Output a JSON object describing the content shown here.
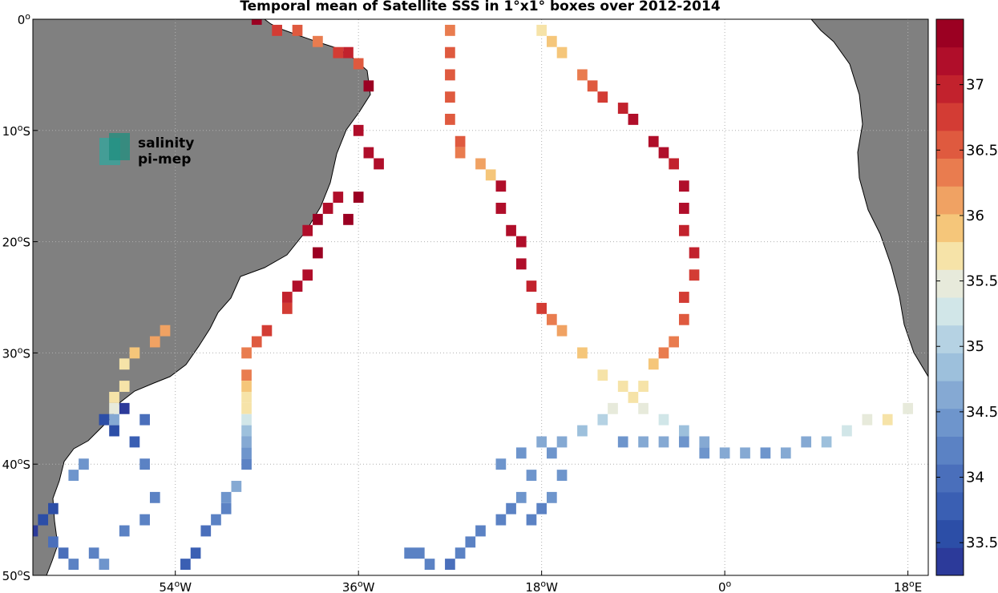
{
  "title": "Temporal mean of Satellite SSS in 1°x1° boxes over 2012-2014",
  "logo": {
    "line1": "salinity",
    "line2": "pi-mep"
  },
  "map": {
    "lon_range": [
      -68,
      20
    ],
    "lat_range": [
      -50,
      0
    ],
    "lon_ticks": [
      {
        "value": -54,
        "num": "54",
        "hemi": "W"
      },
      {
        "value": -36,
        "num": "36",
        "hemi": "W"
      },
      {
        "value": -18,
        "num": "18",
        "hemi": "W"
      },
      {
        "value": 0,
        "num": "0",
        "hemi": ""
      },
      {
        "value": 18,
        "num": "18",
        "hemi": "E"
      }
    ],
    "lat_ticks": [
      {
        "value": 0,
        "num": "0",
        "hemi": ""
      },
      {
        "value": -10,
        "num": "10",
        "hemi": "S"
      },
      {
        "value": -20,
        "num": "20",
        "hemi": "S"
      },
      {
        "value": -30,
        "num": "30",
        "hemi": "S"
      },
      {
        "value": -40,
        "num": "40",
        "hemi": "S"
      },
      {
        "value": -50,
        "num": "50",
        "hemi": "S"
      }
    ],
    "land_color": "#808080",
    "ocean_color": "#ffffff"
  },
  "colorbar": {
    "min": 33.25,
    "max": 37.5,
    "ticks": [
      "33.5",
      "34",
      "34.5",
      "35",
      "35.5",
      "36",
      "36.5",
      "37"
    ],
    "tick_values": [
      33.5,
      34,
      34.5,
      35,
      35.5,
      36,
      36.5,
      37
    ],
    "colors": [
      "#2c3a9a",
      "#2c4ea7",
      "#3a5fb3",
      "#4a6fbb",
      "#5b82c4",
      "#6e95cc",
      "#85a9d3",
      "#9dc0dc",
      "#b5d2e3",
      "#d1e6e8",
      "#e7eadb",
      "#f6e3a8",
      "#f5c67a",
      "#f0a263",
      "#e97c4f",
      "#df5a3f",
      "#d33c34",
      "#c2222d",
      "#b00e2a",
      "#9b0022"
    ]
  },
  "chart_data": {
    "type": "heatmap",
    "title": "Temporal mean of Satellite SSS in 1°x1° boxes over 2012-2014",
    "variable": "Satellite SSS",
    "lon_range": [
      -68,
      20
    ],
    "lat_range": [
      -50,
      0
    ],
    "color_range": [
      33.25,
      37.5
    ],
    "cells": [
      [
        -46,
        0,
        37.4
      ],
      [
        -44,
        -1,
        36.8
      ],
      [
        -42,
        -1,
        36.6
      ],
      [
        -40,
        -2,
        36.3
      ],
      [
        -38,
        -3,
        36.7
      ],
      [
        -37,
        -3,
        36.9
      ],
      [
        -36,
        -4,
        36.6
      ],
      [
        -35,
        -6,
        37.3
      ],
      [
        -36,
        -10,
        37.2
      ],
      [
        -35,
        -12,
        37.2
      ],
      [
        -34,
        -13,
        37.2
      ],
      [
        -36,
        -16,
        37.3
      ],
      [
        -37,
        -18,
        37.3
      ],
      [
        -38,
        -16,
        37.2
      ],
      [
        -40,
        -18,
        37.3
      ],
      [
        -39,
        -17,
        37.2
      ],
      [
        -41,
        -19,
        37.2
      ],
      [
        -40,
        -21,
        37.3
      ],
      [
        -41,
        -23,
        37.2
      ],
      [
        -42,
        -24,
        37.1
      ],
      [
        -43,
        -25,
        36.9
      ],
      [
        -43,
        -26,
        36.7
      ],
      [
        -45,
        -28,
        36.8
      ],
      [
        -46,
        -29,
        36.5
      ],
      [
        -47,
        -30,
        36.3
      ],
      [
        -47,
        -32,
        36.3
      ],
      [
        -47,
        -33,
        36.0
      ],
      [
        -47,
        -34,
        35.8
      ],
      [
        -47,
        -35,
        35.6
      ],
      [
        -47,
        -36,
        35.2
      ],
      [
        -47,
        -37,
        34.9
      ],
      [
        -47,
        -38,
        34.7
      ],
      [
        -47,
        -39,
        34.5
      ],
      [
        -47,
        -40,
        34.3
      ],
      [
        -48,
        -42,
        34.6
      ],
      [
        -49,
        -43,
        34.4
      ],
      [
        -49,
        -44,
        34.3
      ],
      [
        -50,
        -45,
        34.1
      ],
      [
        -51,
        -46,
        33.9
      ],
      [
        -52,
        -48,
        33.8
      ],
      [
        -53,
        -49,
        33.8
      ],
      [
        -55,
        -28,
        36.1
      ],
      [
        -56,
        -29,
        36.2
      ],
      [
        -58,
        -30,
        36.0
      ],
      [
        -59,
        -31,
        35.8
      ],
      [
        -59,
        -33,
        35.7
      ],
      [
        -60,
        -34,
        35.7
      ],
      [
        -60,
        -35,
        35.4
      ],
      [
        -60,
        -36,
        34.7
      ],
      [
        -63,
        -40,
        34.5
      ],
      [
        -64,
        -41,
        34.4
      ],
      [
        -66,
        -44,
        33.6
      ],
      [
        -67,
        -45,
        33.5
      ],
      [
        -68,
        -46,
        33.4
      ],
      [
        -66,
        -47,
        34.0
      ],
      [
        -65,
        -48,
        34.0
      ],
      [
        -64,
        -49,
        34.2
      ],
      [
        -62,
        -48,
        34.3
      ],
      [
        -61,
        -49,
        34.4
      ],
      [
        -59,
        -46,
        34.3
      ],
      [
        -57,
        -45,
        34.3
      ],
      [
        -56,
        -43,
        34.2
      ],
      [
        -57,
        -40,
        34.1
      ],
      [
        -58,
        -38,
        33.8
      ],
      [
        -60,
        -37,
        33.6
      ],
      [
        -61,
        -36,
        33.5
      ],
      [
        -59,
        -35,
        33.4
      ],
      [
        -57,
        -36,
        34.0
      ],
      [
        -27,
        -1,
        36.4
      ],
      [
        -27,
        -3,
        36.5
      ],
      [
        -27,
        -5,
        36.5
      ],
      [
        -27,
        -7,
        36.6
      ],
      [
        -27,
        -9,
        36.6
      ],
      [
        -26,
        -11,
        36.5
      ],
      [
        -26,
        -12,
        36.3
      ],
      [
        -24,
        -13,
        36.1
      ],
      [
        -23,
        -14,
        36.0
      ],
      [
        -22,
        -15,
        37.2
      ],
      [
        -22,
        -17,
        37.2
      ],
      [
        -21,
        -19,
        37.2
      ],
      [
        -20,
        -20,
        37.1
      ],
      [
        -20,
        -22,
        37.1
      ],
      [
        -19,
        -24,
        37.0
      ],
      [
        -18,
        -26,
        36.8
      ],
      [
        -17,
        -27,
        36.4
      ],
      [
        -16,
        -28,
        36.1
      ],
      [
        -14,
        -30,
        35.9
      ],
      [
        -12,
        -32,
        35.7
      ],
      [
        -10,
        -33,
        35.6
      ],
      [
        -8,
        -35,
        35.5
      ],
      [
        -6,
        -36,
        35.2
      ],
      [
        -4,
        -37,
        34.9
      ],
      [
        -2,
        -38,
        34.6
      ],
      [
        -18,
        -1,
        35.8
      ],
      [
        -17,
        -2,
        35.9
      ],
      [
        -16,
        -3,
        35.9
      ],
      [
        -14,
        -5,
        36.4
      ],
      [
        -13,
        -6,
        36.6
      ],
      [
        -12,
        -7,
        36.8
      ],
      [
        -10,
        -8,
        37.0
      ],
      [
        -9,
        -9,
        37.1
      ],
      [
        -7,
        -11,
        37.2
      ],
      [
        -6,
        -12,
        37.2
      ],
      [
        -5,
        -13,
        36.9
      ],
      [
        -4,
        -15,
        37.1
      ],
      [
        -4,
        -17,
        37.1
      ],
      [
        -4,
        -19,
        37.0
      ],
      [
        -3,
        -21,
        36.9
      ],
      [
        -3,
        -23,
        36.8
      ],
      [
        -4,
        -25,
        36.7
      ],
      [
        -4,
        -27,
        36.5
      ],
      [
        -5,
        -29,
        36.4
      ],
      [
        -6,
        -30,
        36.3
      ],
      [
        -7,
        -31,
        36.0
      ],
      [
        -8,
        -33,
        35.8
      ],
      [
        -9,
        -34,
        35.6
      ],
      [
        -11,
        -35,
        35.5
      ],
      [
        -12,
        -36,
        35.0
      ],
      [
        -14,
        -37,
        34.9
      ],
      [
        -16,
        -38,
        34.7
      ],
      [
        -18,
        -38,
        34.6
      ],
      [
        -20,
        -39,
        34.5
      ],
      [
        -22,
        -40,
        34.4
      ],
      [
        -19,
        -41,
        34.5
      ],
      [
        -20,
        -43,
        34.4
      ],
      [
        -21,
        -44,
        34.3
      ],
      [
        -22,
        -45,
        34.3
      ],
      [
        -24,
        -46,
        34.2
      ],
      [
        -25,
        -47,
        34.2
      ],
      [
        -26,
        -48,
        34.1
      ],
      [
        -27,
        -49,
        34.0
      ],
      [
        -29,
        -49,
        34.1
      ],
      [
        -30,
        -48,
        34.2
      ],
      [
        -31,
        -48,
        34.3
      ],
      [
        -17,
        -39,
        34.5
      ],
      [
        -16,
        -41,
        34.4
      ],
      [
        -17,
        -43,
        34.4
      ],
      [
        -18,
        -44,
        34.3
      ],
      [
        -19,
        -45,
        34.2
      ],
      [
        -10,
        -38,
        34.5
      ],
      [
        -8,
        -38,
        34.6
      ],
      [
        -6,
        -38,
        34.6
      ],
      [
        -4,
        -38,
        34.5
      ],
      [
        -2,
        -39,
        34.4
      ],
      [
        0,
        -39,
        34.6
      ],
      [
        2,
        -39,
        34.6
      ],
      [
        4,
        -39,
        34.5
      ],
      [
        6,
        -39,
        34.6
      ],
      [
        8,
        -38,
        34.7
      ],
      [
        10,
        -38,
        34.8
      ],
      [
        12,
        -37,
        35.2
      ],
      [
        14,
        -36,
        35.5
      ],
      [
        16,
        -36,
        35.6
      ],
      [
        18,
        -35,
        35.5
      ]
    ]
  }
}
